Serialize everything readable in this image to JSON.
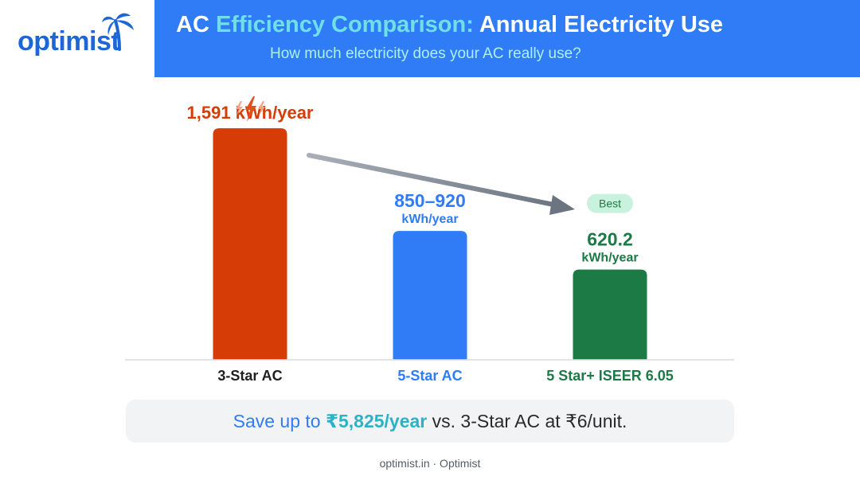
{
  "brand": {
    "name": "optimist",
    "icon": "palm-tree-icon"
  },
  "header": {
    "title_part1": "AC ",
    "title_part2": "Efficiency Comparison:",
    "title_part3": " Annual Electricity Use",
    "subtitle": "How much electricity does your AC really use?"
  },
  "chart_data": {
    "type": "bar",
    "categories": [
      "3-Star AC",
      "5-Star AC",
      "5 Star+ ISEER 6.05"
    ],
    "values": [
      1591,
      885,
      620.2
    ],
    "value_labels": [
      [
        "1,591 kWh/year"
      ],
      [
        "850–920",
        "kWh/year"
      ],
      [
        "620.2",
        "kWh/year"
      ]
    ],
    "colors": [
      "#d63d06",
      "#2f7cf6",
      "#1c7a45"
    ],
    "badge": {
      "category_index": 2,
      "label": "Best"
    },
    "title": "",
    "xlabel": "",
    "ylabel": "",
    "ylim": [
      0,
      1750
    ],
    "grid": false,
    "annotation_icon": "lightning-icon"
  },
  "savings": {
    "part1": "Save up to ",
    "amount": "₹5,825/year",
    "part2": " vs. 3-Star AC at ₹6/unit."
  },
  "footer": "optimist.in · Optimist"
}
